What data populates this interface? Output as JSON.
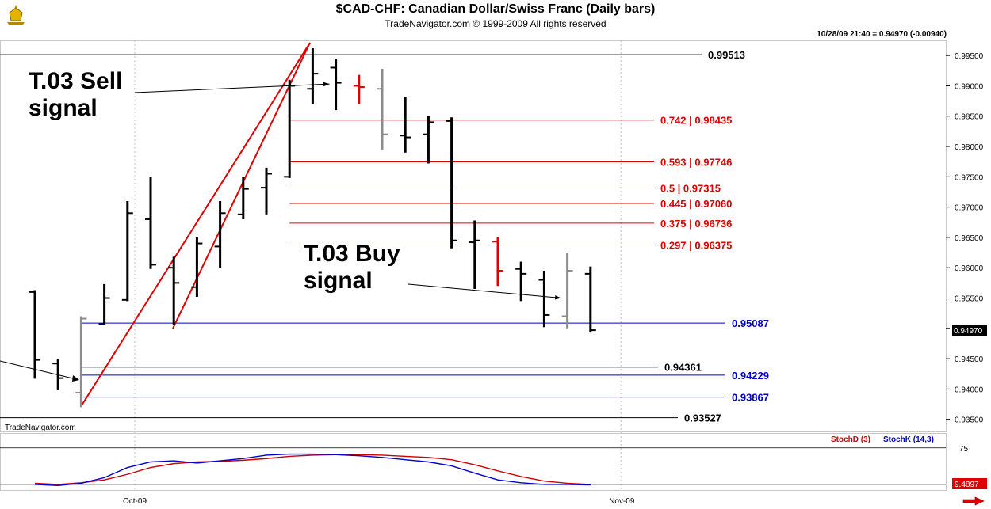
{
  "header": {
    "title": "$CAD-CHF:  Canadian Dollar/Swiss Franc  (Daily bars)",
    "subtitle": "TradeNavigator.com © 1999-2009 All rights reserved",
    "readout": "10/28/09 21:40 = 0.94970 (-0.00940)"
  },
  "watermark": "TradeNavigator.com",
  "colors": {
    "price_bar": "#000000",
    "gray_bar": "#8c8c8c",
    "red_bar": "#e00000",
    "fib_line": "#e00000",
    "blue_line": "#0000cc",
    "stoch_d": "#cc0000",
    "stoch_k": "#0000cc"
  },
  "chart_data": [
    {
      "type": "ohlc",
      "ylim": [
        0.933,
        0.9975
      ],
      "y_ticks": [
        "0.99500",
        "0.99000",
        "0.98500",
        "0.98000",
        "0.97500",
        "0.97000",
        "0.96500",
        "0.96000",
        "0.95500",
        "0.95000",
        "0.94500",
        "0.94000",
        "0.93500"
      ],
      "y_tick_values": [
        0.995,
        0.99,
        0.985,
        0.98,
        0.975,
        0.97,
        0.965,
        0.96,
        0.955,
        0.95,
        0.945,
        0.94,
        0.935
      ],
      "last_price_label": "0.94970",
      "last_price": 0.9497,
      "x_ticks": [
        "Oct-09",
        "Nov-09"
      ],
      "x_tick_index": [
        5,
        26
      ],
      "bars": [
        {
          "i": 0,
          "o": 0.956,
          "h": 0.9563,
          "l": 0.9417,
          "c": 0.9448,
          "color": "black"
        },
        {
          "i": 1,
          "o": 0.9442,
          "h": 0.9449,
          "l": 0.9398,
          "c": 0.9418,
          "color": "black"
        },
        {
          "i": 2,
          "o": 0.9394,
          "h": 0.952,
          "l": 0.937,
          "c": 0.9516,
          "color": "gray"
        },
        {
          "i": 3,
          "o": 0.9507,
          "h": 0.9573,
          "l": 0.9505,
          "c": 0.955,
          "color": "black"
        },
        {
          "i": 4,
          "o": 0.9547,
          "h": 0.971,
          "l": 0.9545,
          "c": 0.969,
          "color": "black"
        },
        {
          "i": 5,
          "o": 0.968,
          "h": 0.975,
          "l": 0.9598,
          "c": 0.9605,
          "color": "black"
        },
        {
          "i": 6,
          "o": 0.96,
          "h": 0.9618,
          "l": 0.9505,
          "c": 0.9575,
          "color": "black"
        },
        {
          "i": 7,
          "o": 0.9568,
          "h": 0.965,
          "l": 0.9552,
          "c": 0.964,
          "color": "black"
        },
        {
          "i": 8,
          "o": 0.9635,
          "h": 0.971,
          "l": 0.96,
          "c": 0.969,
          "color": "black"
        },
        {
          "i": 9,
          "o": 0.9688,
          "h": 0.975,
          "l": 0.968,
          "c": 0.973,
          "color": "black"
        },
        {
          "i": 10,
          "o": 0.9732,
          "h": 0.9765,
          "l": 0.9688,
          "c": 0.9755,
          "color": "black"
        },
        {
          "i": 11,
          "o": 0.975,
          "h": 0.991,
          "l": 0.9748,
          "c": 0.99,
          "color": "black"
        },
        {
          "i": 12,
          "o": 0.9895,
          "h": 0.9962,
          "l": 0.987,
          "c": 0.992,
          "color": "black"
        },
        {
          "i": 13,
          "o": 0.993,
          "h": 0.9945,
          "l": 0.986,
          "c": 0.9905,
          "color": "black"
        },
        {
          "i": 14,
          "o": 0.99,
          "h": 0.9918,
          "l": 0.987,
          "c": 0.9898,
          "color": "red"
        },
        {
          "i": 15,
          "o": 0.9895,
          "h": 0.9928,
          "l": 0.9795,
          "c": 0.982,
          "color": "gray"
        },
        {
          "i": 16,
          "o": 0.9818,
          "h": 0.9882,
          "l": 0.979,
          "c": 0.9815,
          "color": "black"
        },
        {
          "i": 17,
          "o": 0.982,
          "h": 0.985,
          "l": 0.9772,
          "c": 0.984,
          "color": "black"
        },
        {
          "i": 18,
          "o": 0.9842,
          "h": 0.9848,
          "l": 0.9632,
          "c": 0.9645,
          "color": "black"
        },
        {
          "i": 19,
          "o": 0.9642,
          "h": 0.9678,
          "l": 0.9565,
          "c": 0.9645,
          "color": "black"
        },
        {
          "i": 20,
          "o": 0.9643,
          "h": 0.965,
          "l": 0.957,
          "c": 0.9595,
          "color": "red"
        },
        {
          "i": 21,
          "o": 0.9598,
          "h": 0.961,
          "l": 0.9545,
          "c": 0.959,
          "color": "black"
        },
        {
          "i": 22,
          "o": 0.958,
          "h": 0.9595,
          "l": 0.9502,
          "c": 0.9522,
          "color": "black"
        },
        {
          "i": 23,
          "o": 0.952,
          "h": 0.9625,
          "l": 0.95,
          "c": 0.9595,
          "color": "gray"
        },
        {
          "i": 24,
          "o": 0.959,
          "h": 0.9602,
          "l": 0.9493,
          "c": 0.9497,
          "color": "black"
        }
      ],
      "levels": [
        {
          "price": 0.99513,
          "label": "0.99513",
          "color": "black",
          "start": -2
        },
        {
          "price": 0.98435,
          "label": "0.742 | 0.98435",
          "color": "red",
          "start": 11
        },
        {
          "price": 0.97746,
          "label": "0.593 | 0.97746",
          "color": "red",
          "start": 11
        },
        {
          "price": 0.97315,
          "label": "0.5 | 0.97315",
          "color": "red",
          "start": 11
        },
        {
          "price": 0.9706,
          "label": "0.445 | 0.97060",
          "color": "red",
          "start": 11
        },
        {
          "price": 0.96736,
          "label": "0.375 | 0.96736",
          "color": "red",
          "start": 11
        },
        {
          "price": 0.96375,
          "label": "0.297 | 0.96375",
          "color": "red",
          "start": 11
        },
        {
          "price": 0.95087,
          "label": "0.95087",
          "color": "blue",
          "start": 2
        },
        {
          "price": 0.94361,
          "label": "0.94361",
          "color": "black",
          "start": 2
        },
        {
          "price": 0.94229,
          "label": "0.94229",
          "color": "blue",
          "start": 2
        },
        {
          "price": 0.93867,
          "label": "0.93867",
          "color": "blue",
          "start": 2
        },
        {
          "price": 0.93527,
          "label": "0.93527",
          "color": "black",
          "start": -2
        }
      ],
      "annotations": [
        {
          "text": [
            "T.03 Sell",
            "signal"
          ],
          "arrow_to": {
            "i": 13,
            "price": 0.9903
          }
        },
        {
          "text": [
            "T.03 Buy",
            "signal"
          ],
          "arrow_to": {
            "i": 23,
            "price": 0.955
          }
        }
      ]
    },
    {
      "type": "line",
      "name": "stochastic",
      "ylim": [
        0,
        100
      ],
      "y_ticks": [
        "75"
      ],
      "y_tick_values": [
        75
      ],
      "last_value_label": "9.4897",
      "legend": [
        "StochD (3)",
        "StochK (14,3)"
      ],
      "series": [
        {
          "name": "StochD (3)",
          "values": [
            12,
            10,
            13,
            18,
            28,
            40,
            47,
            50,
            51,
            53,
            56,
            60,
            62,
            63,
            63,
            62,
            60,
            58,
            54,
            45,
            34,
            24,
            16,
            12,
            10
          ]
        },
        {
          "name": "StochK (14,3)",
          "values": [
            10,
            8,
            12,
            22,
            40,
            50,
            52,
            48,
            52,
            56,
            62,
            64,
            64,
            63,
            61,
            58,
            54,
            50,
            43,
            30,
            18,
            13,
            10,
            10,
            9
          ]
        }
      ]
    }
  ]
}
